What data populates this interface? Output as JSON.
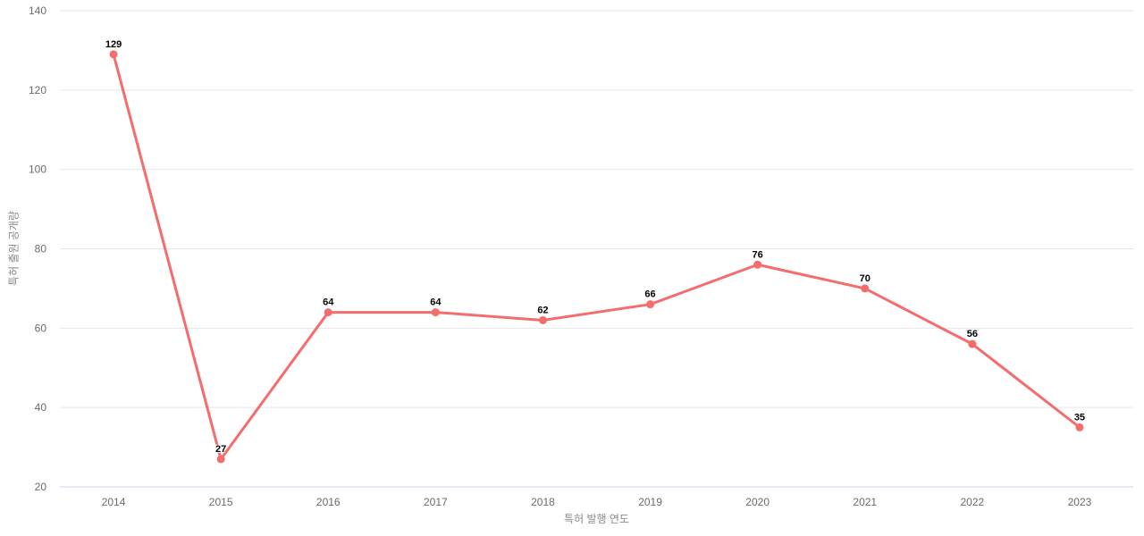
{
  "chart_data": {
    "type": "line",
    "title": "",
    "categories": [
      "2014",
      "2015",
      "2016",
      "2017",
      "2018",
      "2019",
      "2020",
      "2021",
      "2022",
      "2023"
    ],
    "series": [
      {
        "name": "특허 출원 공개량",
        "values": [
          129,
          27,
          64,
          64,
          62,
          66,
          76,
          70,
          56,
          35
        ]
      }
    ],
    "xlabel": "특허 발행 연도",
    "ylabel": "특허 출원 공개량",
    "ylim": [
      20,
      140
    ],
    "yticks": [
      20,
      40,
      60,
      80,
      100,
      120,
      140
    ],
    "grid": true,
    "legend": "none",
    "data_labels": true,
    "colors": {
      "line": "#f56c6c",
      "marker": "#f56c6c",
      "grid": "#e6e6e6",
      "axis_line": "#ccd6eb",
      "tick_label": "#6b6b6b",
      "axis_title": "#8a8a8a",
      "data_label": "#000000",
      "background": "#ffffff"
    }
  }
}
